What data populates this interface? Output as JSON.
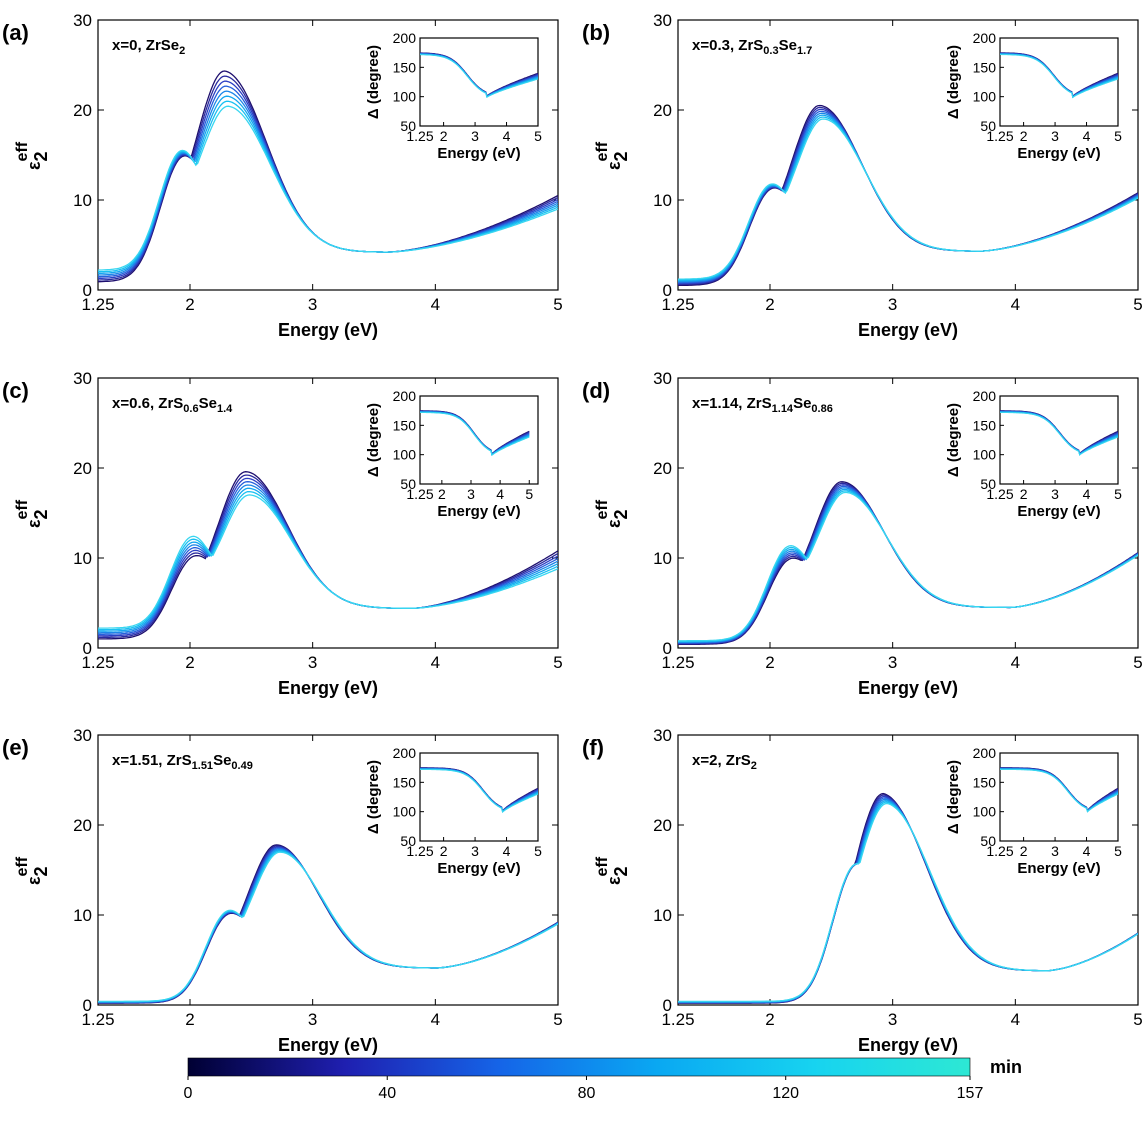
{
  "chart_data": [
    {
      "panel_label": "(a)",
      "type": "line",
      "annotation": "x=0, ZrSe<sub>2</sub>",
      "xlabel": "Energy (eV)",
      "ylabel": "ε2eff",
      "xlim": [
        1.25,
        5
      ],
      "ylim": [
        0,
        30
      ],
      "xticks": [
        "1.25",
        "2",
        "3",
        "4",
        "5"
      ],
      "yticks": [
        "0",
        "10",
        "20",
        "30"
      ],
      "series_count": 8,
      "peaks": [
        {
          "x": 1.93,
          "y_start": 14.8,
          "y_end": 15.5
        },
        {
          "x": 2.3,
          "y_start": 24.2,
          "y_end": 20.3
        }
      ],
      "y_at_start": {
        "start": 0.9,
        "end": 2.2
      },
      "minimum": {
        "x": 3.6,
        "y": 4.2
      },
      "y_at_end": {
        "start": 10.5,
        "end": 9.0
      },
      "inset": {
        "xlabel": "Energy (eV)",
        "ylabel": "Δ (degree)",
        "xlim": [
          1.25,
          5
        ],
        "ylim": [
          50,
          200
        ],
        "xticks": [
          "1.25",
          "2",
          "3",
          "4",
          "5"
        ],
        "yticks": [
          "50",
          "100",
          "150",
          "200"
        ],
        "min_x": 3.35
      }
    },
    {
      "panel_label": "(b)",
      "type": "line",
      "annotation": "x=0.3, ZrS<sub>0.3</sub>Se<sub>1.7</sub>",
      "xlabel": "Energy (eV)",
      "ylabel": "ε2eff",
      "xlim": [
        1.25,
        5
      ],
      "ylim": [
        0,
        30
      ],
      "xticks": [
        "1.25",
        "2",
        "3",
        "4",
        "5"
      ],
      "yticks": [
        "0",
        "10",
        "20",
        "30"
      ],
      "series_count": 8,
      "peaks": [
        {
          "x": 2.0,
          "y_start": 12.0,
          "y_end": 12.5
        },
        {
          "x": 2.42,
          "y_start": 20.5,
          "y_end": 19.0
        }
      ],
      "y_at_start": {
        "start": 0.5,
        "end": 1.2
      },
      "minimum": {
        "x": 3.7,
        "y": 4.3
      },
      "y_at_end": {
        "start": 10.8,
        "end": 10.2
      },
      "inset": {
        "xlabel": "Energy (eV)",
        "ylabel": "Δ (degree)",
        "xlim": [
          1.25,
          5
        ],
        "ylim": [
          50,
          200
        ],
        "xticks": [
          "1.25",
          "2",
          "3",
          "4",
          "5"
        ],
        "yticks": [
          "50",
          "100",
          "150",
          "200"
        ],
        "min_x": 3.55
      }
    },
    {
      "panel_label": "(c)",
      "type": "line",
      "annotation": "x=0.6, ZrS<sub>0.6</sub>Se<sub>1.4</sub>",
      "xlabel": "Energy (eV)",
      "ylabel": "ε2eff",
      "xlim": [
        1.25,
        5
      ],
      "ylim": [
        0,
        30
      ],
      "xticks": [
        "1.25",
        "2",
        "3",
        "4",
        "5"
      ],
      "yticks": [
        "0",
        "10",
        "20",
        "30"
      ],
      "series_count": 8,
      "peaks": [
        {
          "x": 2.02,
          "y_start": 11.0,
          "y_end": 13.0
        },
        {
          "x": 2.47,
          "y_start": 19.6,
          "y_end": 17.0
        }
      ],
      "y_at_start": {
        "start": 1.0,
        "end": 2.2
      },
      "minimum": {
        "x": 3.8,
        "y": 4.4
      },
      "y_at_end": {
        "start": 10.8,
        "end": 8.8
      },
      "inset": {
        "xlabel": "Energy (eV)",
        "ylabel": "Δ (degree)",
        "xlim": [
          1.25,
          5.3
        ],
        "ylim": [
          50,
          200
        ],
        "xticks": [
          "1.25",
          "2",
          "3",
          "4",
          "5"
        ],
        "yticks": [
          "50",
          "100",
          "150",
          "200"
        ],
        "min_x": 3.7
      }
    },
    {
      "panel_label": "(d)",
      "type": "line",
      "annotation": "x=1.14, ZrS<sub>1.14</sub>Se<sub>0.86</sub>",
      "xlabel": "Energy (eV)",
      "ylabel": "ε2eff",
      "xlim": [
        1.25,
        5
      ],
      "ylim": [
        0,
        30
      ],
      "xticks": [
        "1.25",
        "2",
        "3",
        "4",
        "5"
      ],
      "yticks": [
        "0",
        "10",
        "20",
        "30"
      ],
      "series_count": 8,
      "peaks": [
        {
          "x": 2.15,
          "y_start": 11.0,
          "y_end": 12.5
        },
        {
          "x": 2.6,
          "y_start": 18.5,
          "y_end": 17.3
        }
      ],
      "y_at_start": {
        "start": 0.4,
        "end": 0.8
      },
      "minimum": {
        "x": 3.95,
        "y": 4.5
      },
      "y_at_end": {
        "start": 10.6,
        "end": 10.3
      },
      "inset": {
        "xlabel": "Energy (eV)",
        "ylabel": "Δ (degree)",
        "xlim": [
          1.25,
          5
        ],
        "ylim": [
          50,
          200
        ],
        "xticks": [
          "1.25",
          "2",
          "3",
          "4",
          "5"
        ],
        "yticks": [
          "50",
          "100",
          "150",
          "200"
        ],
        "min_x": 3.75
      }
    },
    {
      "panel_label": "(e)",
      "type": "line",
      "annotation": "x=1.51, ZrS<sub>1.51</sub>Se<sub>0.49</sub>",
      "xlabel": "Energy (eV)",
      "ylabel": "ε2eff",
      "xlim": [
        1.25,
        5
      ],
      "ylim": [
        0,
        30
      ],
      "xticks": [
        "1.25",
        "2",
        "3",
        "4",
        "5"
      ],
      "yticks": [
        "0",
        "10",
        "20",
        "30"
      ],
      "series_count": 8,
      "peaks": [
        {
          "x": 2.3,
          "y_start": 11.0,
          "y_end": 11.5
        },
        {
          "x": 2.72,
          "y_start": 17.8,
          "y_end": 17.0
        }
      ],
      "y_at_start": {
        "start": 0.2,
        "end": 0.4
      },
      "minimum": {
        "x": 4.0,
        "y": 4.1
      },
      "y_at_end": {
        "start": 9.2,
        "end": 9.0
      },
      "inset": {
        "xlabel": "Energy (eV)",
        "ylabel": "Δ (degree)",
        "xlim": [
          1.25,
          5
        ],
        "ylim": [
          50,
          200
        ],
        "xticks": [
          "1.25",
          "2",
          "3",
          "4",
          "5"
        ],
        "yticks": [
          "50",
          "100",
          "150",
          "200"
        ],
        "min_x": 3.85
      }
    },
    {
      "panel_label": "(f)",
      "type": "line",
      "annotation": "x=2, ZrS<sub>2</sub>",
      "xlabel": "Energy (eV)",
      "ylabel": "ε2eff",
      "xlim": [
        1.25,
        5
      ],
      "ylim": [
        0,
        30
      ],
      "xticks": [
        "1.25",
        "2",
        "3",
        "4",
        "5"
      ],
      "yticks": [
        "0",
        "10",
        "20",
        "30"
      ],
      "series_count": 8,
      "peaks": [
        {
          "x": 2.68,
          "y_start": 14.5,
          "y_end": 15.0
        },
        {
          "x": 2.95,
          "y_start": 23.0,
          "y_end": 22.0
        }
      ],
      "y_at_start": {
        "start": 0.2,
        "end": 0.4
      },
      "minimum": {
        "x": 4.25,
        "y": 3.8
      },
      "y_at_end": {
        "start": 8.0,
        "end": 7.9
      },
      "inset": {
        "xlabel": "Energy (eV)",
        "ylabel": "Δ (degree)",
        "xlim": [
          1.25,
          5
        ],
        "ylim": [
          50,
          200
        ],
        "xticks": [
          "1.25",
          "2",
          "3",
          "4",
          "5"
        ],
        "yticks": [
          "50",
          "100",
          "150",
          "200"
        ],
        "min_x": 4.0
      }
    }
  ],
  "colorbar": {
    "unit": "min",
    "range": [
      0,
      157
    ],
    "ticks": [
      "0",
      "40",
      "80",
      "120",
      "157"
    ],
    "colors": [
      "#000033",
      "#1f1fb0",
      "#1565e8",
      "#0aa8f2",
      "#17d3f0",
      "#2de8d4"
    ]
  },
  "series_colors": [
    "#1e0f6e",
    "#2a2a9e",
    "#2c3fc4",
    "#2560dc",
    "#1c86e8",
    "#14a6ef",
    "#18c0f2",
    "#38d6f0"
  ]
}
